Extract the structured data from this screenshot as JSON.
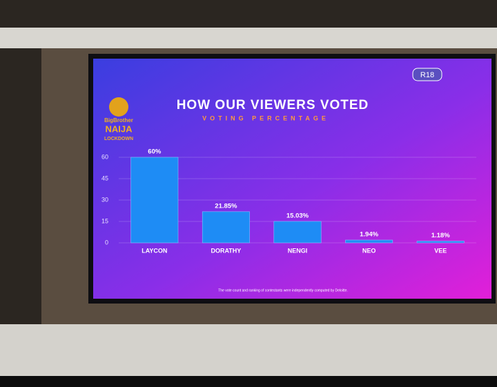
{
  "chart_data": {
    "type": "bar",
    "title": "HOW OUR VIEWERS VOTED",
    "subtitle": "VOTING PERCENTAGE",
    "rating": "R18",
    "logo": [
      "BigBrother",
      "NAIJA",
      "LOCKDOWN"
    ],
    "footnote": "The vote count and ranking of contestants were independently computed by Deloitte.",
    "categories": [
      "LAYCON",
      "DORATHY",
      "NENGI",
      "NEO",
      "VEE"
    ],
    "values": [
      60,
      21.85,
      15.03,
      1.94,
      1.18
    ],
    "value_labels": [
      "60%",
      "21.85%",
      "15.03%",
      "1.94%",
      "1.18%"
    ],
    "color": "#1e8cf5",
    "ylim": [
      0,
      60
    ],
    "yticks": [
      0,
      15,
      30,
      45,
      60
    ],
    "grid": true
  }
}
